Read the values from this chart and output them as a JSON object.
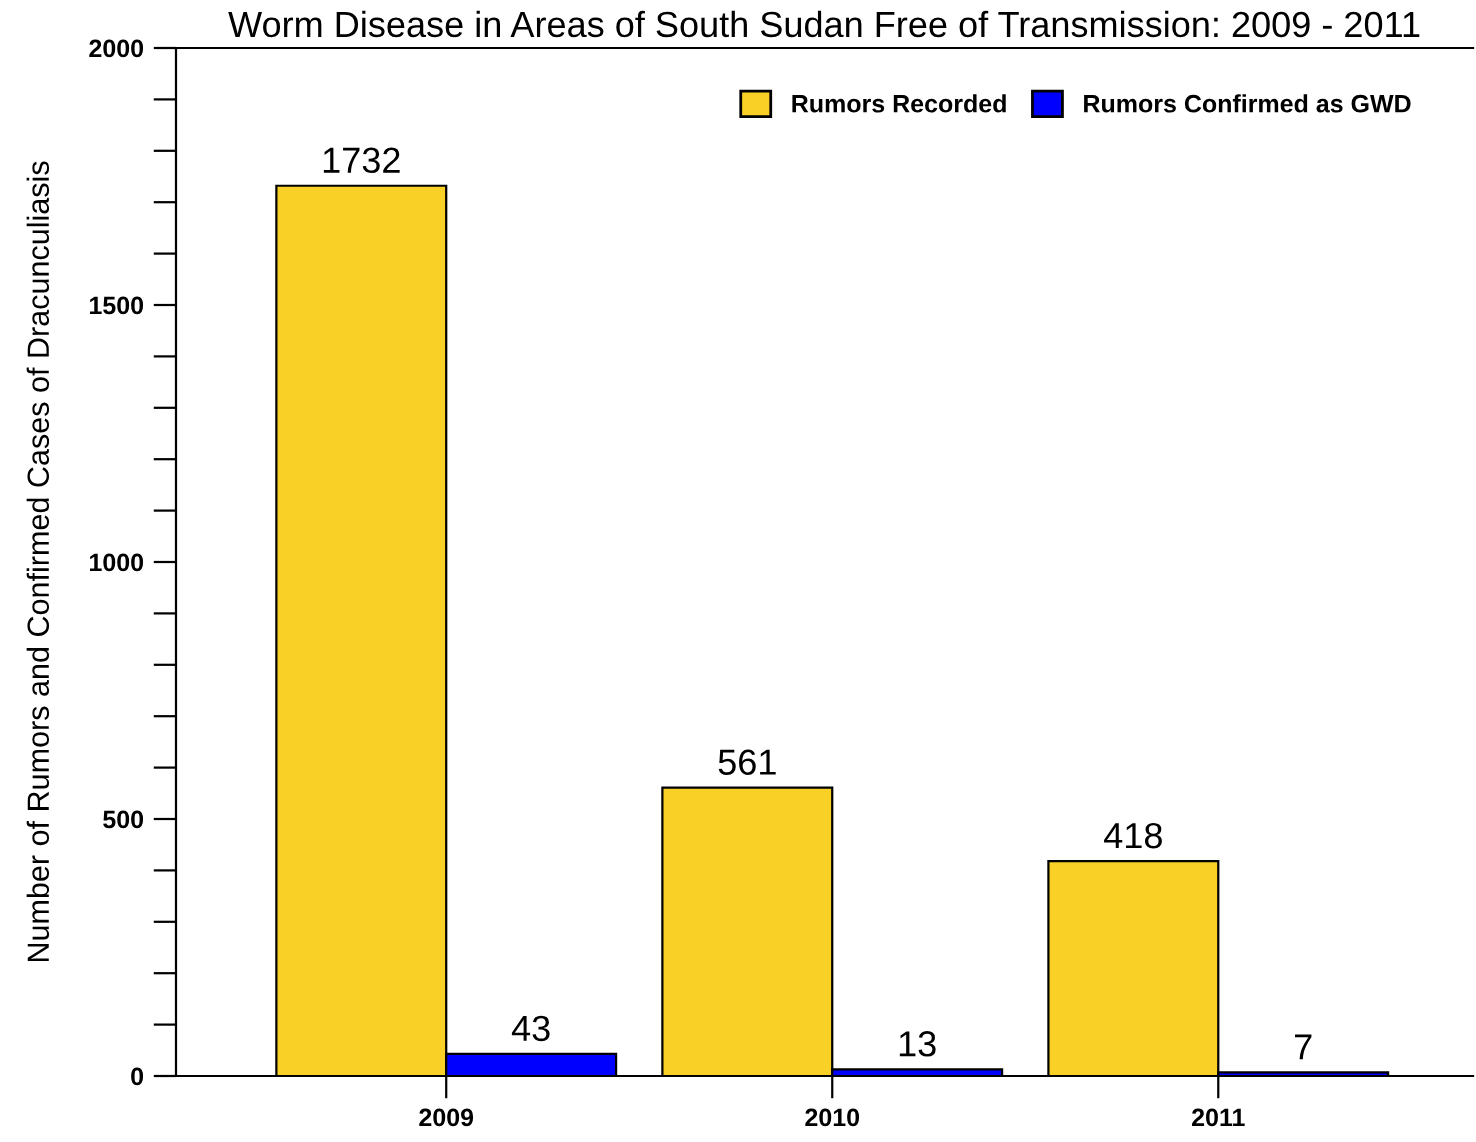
{
  "chart_data": {
    "type": "bar",
    "title": "Worm Disease in Areas of South Sudan Free of Transmission: 2009 - 2011",
    "ylabel": "Number of Rumors and Confirmed Cases of Dracunculiasis",
    "categories": [
      "2009",
      "2010",
      "2011"
    ],
    "series": [
      {
        "name": "Rumors Recorded",
        "color": "#f9d026",
        "values": [
          1732,
          561,
          418
        ]
      },
      {
        "name": "Rumors Confirmed as GWD",
        "color": "#0000ff",
        "values": [
          43,
          13,
          7
        ]
      }
    ],
    "ylim": [
      0,
      2000
    ],
    "yticks": [
      0,
      {
        "value": 100,
        "label": null
      },
      {
        "value": 200,
        "label": null
      },
      {
        "value": 300,
        "label": null
      },
      {
        "value": 400,
        "label": null
      },
      500,
      {
        "value": 600,
        "label": null
      },
      {
        "value": 700,
        "label": null
      },
      {
        "value": 800,
        "label": null
      },
      {
        "value": 900,
        "label": null
      },
      1000,
      {
        "value": 1100,
        "label": null
      },
      {
        "value": 1200,
        "label": null
      },
      {
        "value": 1300,
        "label": null
      },
      {
        "value": 1400,
        "label": null
      },
      1500,
      {
        "value": 1600,
        "label": null
      },
      {
        "value": 1700,
        "label": null
      },
      {
        "value": 1800,
        "label": null
      },
      {
        "value": 1900,
        "label": null
      },
      2000
    ],
    "data_labels": true,
    "legend": "top right",
    "grid": false
  }
}
